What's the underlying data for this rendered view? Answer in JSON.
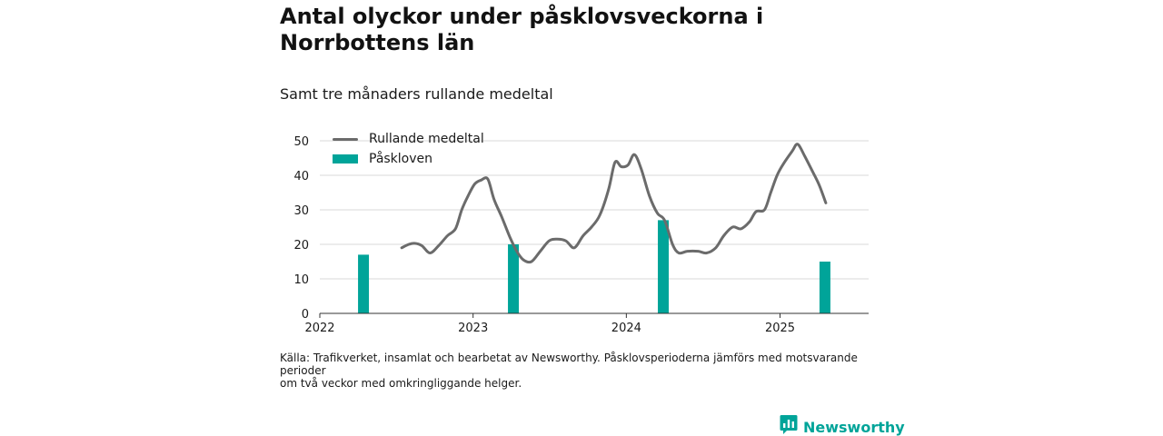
{
  "colors": {
    "line": "#6b6b6b",
    "bar": "#00a499",
    "grid": "#d9d9d9",
    "axis": "#333333",
    "brand": "#00a499"
  },
  "chart_data": {
    "type": "bar",
    "title": "Antal olyckor under påsklovsveckorna i Norrbottens län",
    "subtitle": "Samt tre månaders rullande medeltal",
    "xlabel": "",
    "ylabel": "",
    "ylim": [
      0,
      50
    ],
    "xlim": [
      "2022-01-01",
      "2025-07-31"
    ],
    "yticks": [
      0,
      10,
      20,
      30,
      40,
      50
    ],
    "xticks": [
      {
        "date": "2022-01-01",
        "label": "2022"
      },
      {
        "date": "2023-01-01",
        "label": "2023"
      },
      {
        "date": "2024-01-01",
        "label": "2024"
      },
      {
        "date": "2025-01-01",
        "label": "2025"
      }
    ],
    "grid": true,
    "legend_position": "top-left",
    "series": [
      {
        "name": "Rullande medeltal",
        "kind": "line",
        "points": [
          [
            "2022-07-15",
            19.0
          ],
          [
            "2022-08-01",
            20.0
          ],
          [
            "2022-08-15",
            20.3
          ],
          [
            "2022-09-01",
            19.6
          ],
          [
            "2022-09-20",
            17.5
          ],
          [
            "2022-10-10",
            19.5
          ],
          [
            "2022-11-01",
            22.5
          ],
          [
            "2022-11-20",
            24.5
          ],
          [
            "2022-12-05",
            30.0
          ],
          [
            "2022-12-20",
            34.0
          ],
          [
            "2023-01-05",
            37.5
          ],
          [
            "2023-01-20",
            38.6
          ],
          [
            "2023-02-05",
            38.9
          ],
          [
            "2023-02-20",
            33.0
          ],
          [
            "2023-03-10",
            28.0
          ],
          [
            "2023-03-30",
            22.0
          ],
          [
            "2023-04-15",
            18.0
          ],
          [
            "2023-05-01",
            15.5
          ],
          [
            "2023-05-20",
            15.0
          ],
          [
            "2023-06-10",
            18.0
          ],
          [
            "2023-07-01",
            21.0
          ],
          [
            "2023-07-20",
            21.5
          ],
          [
            "2023-08-10",
            21.0
          ],
          [
            "2023-08-30",
            19.0
          ],
          [
            "2023-09-20",
            22.5
          ],
          [
            "2023-10-10",
            25.0
          ],
          [
            "2023-10-30",
            28.5
          ],
          [
            "2023-11-20",
            36.0
          ],
          [
            "2023-12-05",
            43.8
          ],
          [
            "2023-12-20",
            42.5
          ],
          [
            "2024-01-05",
            43.0
          ],
          [
            "2024-01-20",
            46.0
          ],
          [
            "2024-02-05",
            42.0
          ],
          [
            "2024-02-25",
            34.0
          ],
          [
            "2024-03-15",
            29.0
          ],
          [
            "2024-04-01",
            27.0
          ],
          [
            "2024-04-20",
            20.0
          ],
          [
            "2024-05-05",
            17.5
          ],
          [
            "2024-05-25",
            18.0
          ],
          [
            "2024-06-20",
            18.0
          ],
          [
            "2024-07-10",
            17.5
          ],
          [
            "2024-08-01",
            19.0
          ],
          [
            "2024-08-20",
            22.5
          ],
          [
            "2024-09-10",
            25.0
          ],
          [
            "2024-09-30",
            24.5
          ],
          [
            "2024-10-20",
            26.5
          ],
          [
            "2024-11-05",
            29.5
          ],
          [
            "2024-11-25",
            30.0
          ],
          [
            "2024-12-10",
            35.0
          ],
          [
            "2024-12-25",
            40.0
          ],
          [
            "2025-01-10",
            43.5
          ],
          [
            "2025-01-30",
            47.0
          ],
          [
            "2025-02-12",
            49.0
          ],
          [
            "2025-03-01",
            45.5
          ],
          [
            "2025-03-20",
            41.0
          ],
          [
            "2025-04-05",
            37.0
          ],
          [
            "2025-04-20",
            32.0
          ]
        ]
      },
      {
        "name": "Påskloven",
        "kind": "bar",
        "points": [
          [
            "2022-04-15",
            17
          ],
          [
            "2023-04-07",
            20
          ],
          [
            "2024-03-29",
            27
          ],
          [
            "2025-04-18",
            15
          ]
        ]
      }
    ]
  },
  "source": {
    "line1": "Källa: Trafikverket, insamlat och bearbetat av Newsworthy. Påsklovsperioderna jämförs med motsvarande perioder",
    "line2": "om två veckor med omkringliggande helger."
  },
  "brand": {
    "name": "Newsworthy",
    "icon": "newsworthy-logo-icon"
  }
}
